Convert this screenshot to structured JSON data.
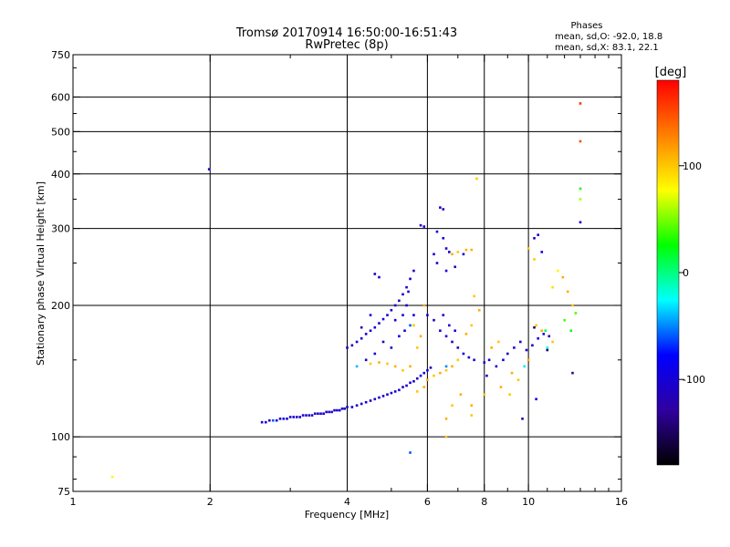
{
  "chart_data": {
    "type": "scatter",
    "title": "Tromsø 20170914 16:50:00-16:51:43",
    "subtitle": "RwPretec (8p)",
    "xlabel": "Frequency [MHz]",
    "ylabel": "Stationary phase Virtual Height [km]",
    "x_scale": "log",
    "y_scale": "log",
    "xlim": [
      1,
      16
    ],
    "ylim": [
      75,
      750
    ],
    "x_ticks": [
      1,
      2,
      4,
      6,
      8,
      10,
      16
    ],
    "x_tick_labels": [
      "1",
      "2",
      "4",
      "6",
      "8",
      "10",
      "16"
    ],
    "x_grid": [
      2,
      4,
      6,
      8,
      10
    ],
    "y_ticks": [
      75,
      100,
      200,
      300,
      400,
      500,
      600,
      750
    ],
    "y_tick_labels": [
      "75",
      "100",
      "200",
      "300",
      "400",
      "500",
      "600",
      "750"
    ],
    "y_grid": [
      100,
      200,
      300,
      400,
      500,
      600
    ],
    "grid": true,
    "phase_stats": {
      "heading": "Phases",
      "o_line": "mean, sd,O:  -92.0, 18.8",
      "x_line": "mean, sd,X:  83.1, 22.1"
    },
    "colorbar": {
      "label": "[deg]",
      "range": [
        -180,
        180
      ],
      "ticks": [
        100,
        0,
        -100
      ],
      "tick_labels": [
        "100",
        "0",
        "-100"
      ],
      "colors": [
        "#ff0000",
        "#ff8000",
        "#ffff00",
        "#00ff00",
        "#00ffff",
        "#0000ff",
        "#3000a0",
        "#000000"
      ]
    },
    "points": [
      [
        1.22,
        81,
        80
      ],
      [
        1.99,
        410,
        -110
      ],
      [
        2.6,
        108,
        -100
      ],
      [
        2.65,
        108,
        -95
      ],
      [
        2.7,
        109,
        -100
      ],
      [
        2.75,
        109,
        -60
      ],
      [
        2.8,
        109,
        -100
      ],
      [
        2.85,
        110,
        -90
      ],
      [
        2.9,
        110,
        -100
      ],
      [
        2.95,
        110,
        -100
      ],
      [
        3.0,
        111,
        -110
      ],
      [
        3.05,
        111,
        -100
      ],
      [
        3.1,
        111,
        -105
      ],
      [
        3.15,
        111,
        -100
      ],
      [
        3.2,
        112,
        -95
      ],
      [
        3.25,
        112,
        -100
      ],
      [
        3.3,
        112,
        -110
      ],
      [
        3.35,
        112,
        -100
      ],
      [
        3.4,
        113,
        -105
      ],
      [
        3.45,
        113,
        -100
      ],
      [
        3.5,
        113,
        -95
      ],
      [
        3.55,
        113,
        -100
      ],
      [
        3.6,
        114,
        -110
      ],
      [
        3.65,
        114,
        -100
      ],
      [
        3.7,
        114,
        -100
      ],
      [
        3.75,
        115,
        -105
      ],
      [
        3.8,
        115,
        -100
      ],
      [
        3.85,
        115,
        -95
      ],
      [
        3.9,
        116,
        -100
      ],
      [
        3.95,
        116,
        -110
      ],
      [
        4.0,
        117,
        -100
      ],
      [
        4.1,
        117,
        -100
      ],
      [
        4.2,
        118,
        -105
      ],
      [
        4.3,
        119,
        -100
      ],
      [
        4.4,
        120,
        -95
      ],
      [
        4.5,
        121,
        -100
      ],
      [
        4.6,
        122,
        -110
      ],
      [
        4.7,
        123,
        -100
      ],
      [
        4.8,
        124,
        -100
      ],
      [
        4.9,
        125,
        -105
      ],
      [
        5.0,
        126,
        -100
      ],
      [
        5.1,
        127,
        -95
      ],
      [
        5.2,
        128,
        -100
      ],
      [
        5.3,
        130,
        -110
      ],
      [
        5.4,
        131,
        -100
      ],
      [
        5.5,
        133,
        -100
      ],
      [
        5.6,
        134,
        -105
      ],
      [
        5.7,
        136,
        -100
      ],
      [
        5.8,
        138,
        -95
      ],
      [
        5.9,
        140,
        -100
      ],
      [
        6.0,
        142,
        -100
      ],
      [
        6.1,
        144,
        -110
      ],
      [
        4.0,
        160,
        -100
      ],
      [
        4.1,
        162,
        -110
      ],
      [
        4.2,
        165,
        -100
      ],
      [
        4.3,
        168,
        -95
      ],
      [
        4.4,
        172,
        -100
      ],
      [
        4.5,
        175,
        -110
      ],
      [
        4.6,
        178,
        -100
      ],
      [
        4.7,
        182,
        -105
      ],
      [
        4.8,
        186,
        -100
      ],
      [
        4.9,
        190,
        -95
      ],
      [
        5.0,
        195,
        -100
      ],
      [
        5.1,
        200,
        -110
      ],
      [
        5.2,
        205,
        -100
      ],
      [
        5.3,
        212,
        -100
      ],
      [
        5.4,
        220,
        -105
      ],
      [
        5.5,
        230,
        -100
      ],
      [
        5.6,
        240,
        -95
      ],
      [
        4.6,
        236,
        -110
      ],
      [
        4.7,
        232,
        -100
      ],
      [
        5.3,
        190,
        -110
      ],
      [
        5.35,
        175,
        -100
      ],
      [
        5.1,
        185,
        -90
      ],
      [
        5.4,
        200,
        -100
      ],
      [
        4.3,
        178,
        -110
      ],
      [
        4.5,
        190,
        -100
      ],
      [
        5.2,
        170,
        -95
      ],
      [
        5.0,
        160,
        -100
      ],
      [
        4.8,
        165,
        -110
      ],
      [
        5.45,
        215,
        -100
      ],
      [
        5.5,
        180,
        -60
      ],
      [
        5.6,
        190,
        -100
      ],
      [
        4.4,
        150,
        -110
      ],
      [
        4.6,
        155,
        -100
      ],
      [
        5.8,
        305,
        -110
      ],
      [
        5.9,
        303,
        -100
      ],
      [
        6.4,
        335,
        -100
      ],
      [
        6.5,
        332,
        -110
      ],
      [
        6.3,
        295,
        -100
      ],
      [
        6.5,
        285,
        -95
      ],
      [
        6.2,
        262,
        -100
      ],
      [
        6.6,
        270,
        -110
      ],
      [
        6.7,
        265,
        -100
      ],
      [
        6.8,
        262,
        110
      ],
      [
        7.0,
        265,
        100
      ],
      [
        7.3,
        268,
        110
      ],
      [
        7.5,
        268,
        110
      ],
      [
        7.2,
        262,
        -100
      ],
      [
        6.9,
        245,
        -110
      ],
      [
        6.6,
        240,
        -100
      ],
      [
        6.3,
        250,
        -105
      ],
      [
        6.0,
        190,
        -100
      ],
      [
        6.2,
        185,
        -110
      ],
      [
        6.4,
        175,
        -100
      ],
      [
        6.6,
        170,
        -95
      ],
      [
        6.8,
        165,
        -100
      ],
      [
        7.0,
        160,
        -110
      ],
      [
        7.2,
        155,
        -100
      ],
      [
        7.4,
        152,
        -100
      ],
      [
        7.6,
        150,
        -105
      ],
      [
        6.5,
        190,
        -100
      ],
      [
        6.7,
        180,
        -110
      ],
      [
        6.9,
        175,
        -100
      ],
      [
        5.5,
        145,
        110
      ],
      [
        5.3,
        142,
        100
      ],
      [
        5.1,
        145,
        110
      ],
      [
        4.9,
        147,
        100
      ],
      [
        4.7,
        148,
        110
      ],
      [
        4.5,
        147,
        100
      ],
      [
        5.8,
        170,
        110
      ],
      [
        5.6,
        180,
        100
      ],
      [
        5.9,
        200,
        110
      ],
      [
        5.7,
        160,
        100
      ],
      [
        5.9,
        130,
        110
      ],
      [
        5.7,
        127,
        100
      ],
      [
        6.0,
        135,
        110
      ],
      [
        6.2,
        138,
        100
      ],
      [
        6.4,
        140,
        110
      ],
      [
        6.6,
        142,
        100
      ],
      [
        6.8,
        145,
        110
      ],
      [
        7.0,
        150,
        100
      ],
      [
        7.3,
        172,
        110
      ],
      [
        7.5,
        180,
        100
      ],
      [
        7.8,
        195,
        110
      ],
      [
        7.6,
        210,
        100
      ],
      [
        7.7,
        390,
        100
      ],
      [
        6.6,
        110,
        110
      ],
      [
        6.8,
        118,
        100
      ],
      [
        7.1,
        125,
        110
      ],
      [
        7.5,
        112,
        100
      ],
      [
        6.6,
        100,
        100
      ],
      [
        8.0,
        148,
        -110
      ],
      [
        8.2,
        150,
        -100
      ],
      [
        8.5,
        145,
        -95
      ],
      [
        8.8,
        150,
        -100
      ],
      [
        9.0,
        155,
        -110
      ],
      [
        9.3,
        160,
        -100
      ],
      [
        9.6,
        165,
        -100
      ],
      [
        9.9,
        158,
        -110
      ],
      [
        10.2,
        162,
        -100
      ],
      [
        10.5,
        168,
        -95
      ],
      [
        10.8,
        172,
        -100
      ],
      [
        11.1,
        170,
        -110
      ],
      [
        8.3,
        160,
        110
      ],
      [
        8.6,
        165,
        100
      ],
      [
        9.2,
        140,
        110
      ],
      [
        9.5,
        135,
        100
      ],
      [
        10.0,
        150,
        110
      ],
      [
        10.4,
        180,
        100
      ],
      [
        11.3,
        165,
        100
      ],
      [
        10.7,
        175,
        110
      ],
      [
        11.0,
        160,
        -20
      ],
      [
        9.8,
        145,
        -30
      ],
      [
        8.7,
        130,
        110
      ],
      [
        9.1,
        125,
        100
      ],
      [
        9.7,
        110,
        -110
      ],
      [
        10.4,
        122,
        -100
      ],
      [
        8.1,
        138,
        -110
      ],
      [
        10.3,
        178,
        -150
      ],
      [
        11.0,
        158,
        -150
      ],
      [
        10.3,
        285,
        -110
      ],
      [
        10.5,
        290,
        -100
      ],
      [
        10.0,
        270,
        100
      ],
      [
        10.3,
        255,
        100
      ],
      [
        10.7,
        265,
        -100
      ],
      [
        11.6,
        240,
        80
      ],
      [
        11.9,
        232,
        110
      ],
      [
        11.3,
        220,
        90
      ],
      [
        12.2,
        215,
        110
      ],
      [
        12.5,
        200,
        100
      ],
      [
        12.0,
        185,
        40
      ],
      [
        10.9,
        175,
        10
      ],
      [
        12.7,
        192,
        40
      ],
      [
        12.4,
        175,
        20
      ],
      [
        13.0,
        580,
        160
      ],
      [
        13.0,
        475,
        150
      ],
      [
        13.0,
        370,
        30
      ],
      [
        13.0,
        350,
        60
      ],
      [
        13.0,
        310,
        -100
      ],
      [
        12.5,
        140,
        -130
      ],
      [
        5.5,
        92,
        -60
      ],
      [
        4.2,
        145,
        -40
      ],
      [
        6.6,
        145,
        -50
      ],
      [
        8.0,
        125,
        100
      ],
      [
        7.5,
        118,
        110
      ]
    ]
  }
}
